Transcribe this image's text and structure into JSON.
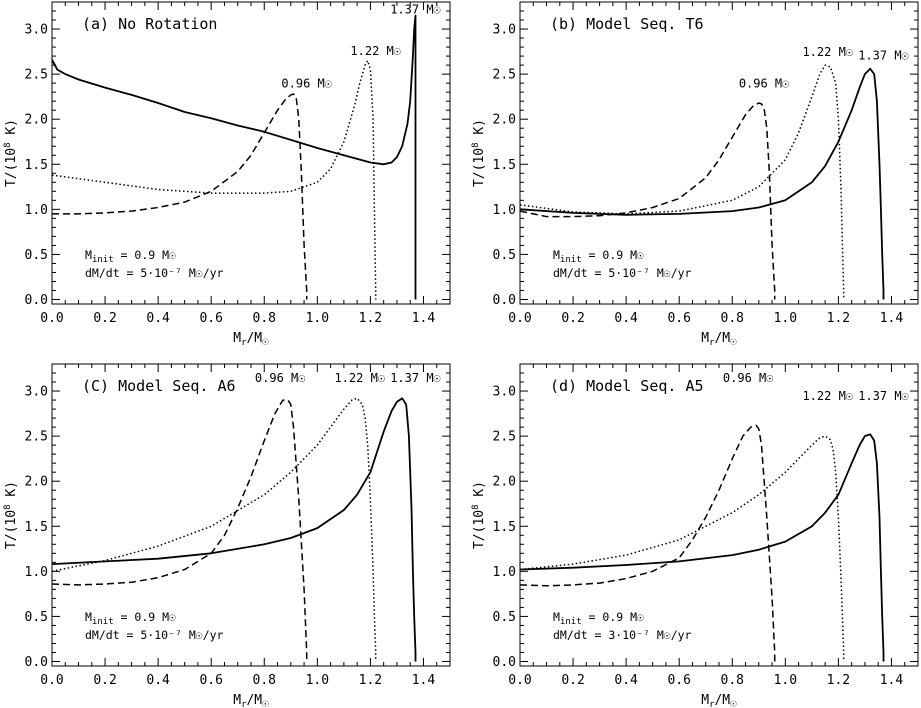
{
  "figure": {
    "xlabel_main": "M",
    "xlabel_sub": "r",
    "xlabel_rest": "/M",
    "xlabel_sym": "☉",
    "ylabel_pre": "T/(10",
    "ylabel_exp": "8",
    "ylabel_post": " K)"
  },
  "chart_data": [
    {
      "type": "line",
      "title": "(a) No Rotation",
      "annot_minit_pre": "M",
      "annot_minit_sub": "init",
      "annot_minit_post": " = 0.9 M☉",
      "annot_rate": "dM/dt = 5·10⁻⁷ M☉/yr",
      "xlim": [
        0,
        1.5
      ],
      "ylim": [
        -0.05,
        3.3
      ],
      "xticks": [
        "0.0",
        "0.2",
        "0.4",
        "0.6",
        "0.8",
        "1.0",
        "1.2",
        "1.4"
      ],
      "yticks": [
        "0.0",
        "0.5",
        "1.0",
        "1.5",
        "2.0",
        "2.5",
        "3.0"
      ],
      "series": [
        {
          "name": "0.96 M☉",
          "style": "dashed",
          "label_x": 0.96,
          "label_y": 2.35,
          "x": [
            0,
            0.1,
            0.2,
            0.3,
            0.4,
            0.5,
            0.6,
            0.7,
            0.75,
            0.8,
            0.85,
            0.88,
            0.9,
            0.91,
            0.92,
            0.93,
            0.94,
            0.95,
            0.96,
            0.96
          ],
          "y": [
            0.95,
            0.95,
            0.96,
            0.98,
            1.02,
            1.08,
            1.2,
            1.42,
            1.6,
            1.85,
            2.1,
            2.22,
            2.27,
            2.28,
            2.25,
            2.0,
            1.4,
            0.6,
            0.1,
            0
          ]
        },
        {
          "name": "1.22 M☉",
          "style": "dotted",
          "label_x": 1.22,
          "label_y": 2.71,
          "x": [
            0,
            0.2,
            0.4,
            0.6,
            0.8,
            0.9,
            1.0,
            1.05,
            1.1,
            1.14,
            1.16,
            1.18,
            1.19,
            1.2,
            1.21,
            1.215,
            1.22,
            1.22
          ],
          "y": [
            1.38,
            1.3,
            1.22,
            1.18,
            1.18,
            1.2,
            1.3,
            1.45,
            1.75,
            2.15,
            2.4,
            2.6,
            2.65,
            2.55,
            2.0,
            1.0,
            0.1,
            0
          ]
        },
        {
          "name": "1.37 M☉",
          "style": "solid",
          "label_x": 1.37,
          "label_y": 3.17,
          "x": [
            0,
            0.02,
            0.05,
            0.1,
            0.2,
            0.3,
            0.4,
            0.5,
            0.6,
            0.7,
            0.8,
            0.9,
            1.0,
            1.1,
            1.2,
            1.25,
            1.28,
            1.3,
            1.32,
            1.34,
            1.35,
            1.36,
            1.365,
            1.37,
            1.37
          ],
          "y": [
            2.66,
            2.55,
            2.5,
            2.44,
            2.35,
            2.27,
            2.18,
            2.08,
            2.01,
            1.93,
            1.86,
            1.77,
            1.68,
            1.6,
            1.52,
            1.5,
            1.52,
            1.58,
            1.7,
            1.95,
            2.2,
            2.7,
            3.0,
            3.15,
            0
          ]
        }
      ]
    },
    {
      "type": "line",
      "title": "(b) Model Seq. T6",
      "annot_minit_pre": "M",
      "annot_minit_sub": "init",
      "annot_minit_post": " = 0.9 M☉",
      "annot_rate": "dM/dt = 5·10⁻⁷ M☉/yr",
      "xlim": [
        0,
        1.5
      ],
      "ylim": [
        -0.05,
        3.3
      ],
      "xticks": [
        "0.0",
        "0.2",
        "0.4",
        "0.6",
        "0.8",
        "1.0",
        "1.2",
        "1.4"
      ],
      "yticks": [
        "0.0",
        "0.5",
        "1.0",
        "1.5",
        "2.0",
        "2.5",
        "3.0"
      ],
      "series": [
        {
          "name": "0.96 M☉",
          "style": "dashed",
          "label_x": 0.92,
          "label_y": 2.35,
          "x": [
            0,
            0.1,
            0.2,
            0.3,
            0.4,
            0.5,
            0.6,
            0.7,
            0.75,
            0.8,
            0.85,
            0.88,
            0.9,
            0.91,
            0.92,
            0.93,
            0.94,
            0.95,
            0.96,
            0.96
          ],
          "y": [
            0.98,
            0.92,
            0.92,
            0.93,
            0.96,
            1.02,
            1.12,
            1.35,
            1.55,
            1.8,
            2.05,
            2.15,
            2.18,
            2.17,
            2.12,
            1.9,
            1.4,
            0.6,
            0.1,
            0
          ]
        },
        {
          "name": "1.22 M☉",
          "style": "dotted",
          "label_x": 1.16,
          "label_y": 2.7,
          "x": [
            0,
            0.2,
            0.4,
            0.6,
            0.8,
            0.9,
            1.0,
            1.05,
            1.1,
            1.13,
            1.15,
            1.17,
            1.19,
            1.2,
            1.21,
            1.215,
            1.22,
            1.22
          ],
          "y": [
            1.05,
            0.97,
            0.95,
            0.98,
            1.1,
            1.25,
            1.55,
            1.85,
            2.25,
            2.5,
            2.6,
            2.58,
            2.4,
            2.0,
            1.2,
            0.6,
            0.1,
            0
          ]
        },
        {
          "name": "1.37 M☉",
          "style": "solid",
          "label_x": 1.37,
          "label_y": 2.66,
          "x": [
            0,
            0.2,
            0.4,
            0.6,
            0.8,
            0.9,
            1.0,
            1.1,
            1.15,
            1.2,
            1.25,
            1.28,
            1.3,
            1.32,
            1.335,
            1.345,
            1.355,
            1.36,
            1.365,
            1.37,
            1.37
          ],
          "y": [
            1.0,
            0.96,
            0.94,
            0.95,
            0.98,
            1.02,
            1.1,
            1.3,
            1.48,
            1.75,
            2.1,
            2.35,
            2.5,
            2.56,
            2.5,
            2.2,
            1.5,
            1.0,
            0.5,
            0.1,
            0
          ]
        }
      ]
    },
    {
      "type": "line",
      "title": "(C) Model Seq. A6",
      "annot_minit_pre": "M",
      "annot_minit_sub": "init",
      "annot_minit_post": " = 0.9 M☉",
      "annot_rate": "dM/dt = 5·10⁻⁷ M☉/yr",
      "xlim": [
        0,
        1.5
      ],
      "ylim": [
        -0.05,
        3.3
      ],
      "xticks": [
        "0.0",
        "0.2",
        "0.4",
        "0.6",
        "0.8",
        "1.0",
        "1.2",
        "1.4"
      ],
      "yticks": [
        "0.0",
        "0.5",
        "1.0",
        "1.5",
        "2.0",
        "2.5",
        "3.0"
      ],
      "series": [
        {
          "name": "0.96 M☉",
          "style": "dashed",
          "label_x": 0.86,
          "label_y": 3.1,
          "x": [
            0,
            0.1,
            0.2,
            0.3,
            0.4,
            0.5,
            0.6,
            0.65,
            0.7,
            0.75,
            0.8,
            0.84,
            0.87,
            0.89,
            0.9,
            0.91,
            0.93,
            0.95,
            0.96,
            0.96
          ],
          "y": [
            0.86,
            0.85,
            0.86,
            0.88,
            0.93,
            1.02,
            1.2,
            1.4,
            1.7,
            2.05,
            2.45,
            2.75,
            2.9,
            2.9,
            2.85,
            2.6,
            1.8,
            0.8,
            0.1,
            0
          ]
        },
        {
          "name": "1.22 M☉",
          "style": "dotted",
          "label_x": 1.16,
          "label_y": 3.1,
          "x": [
            0,
            0.2,
            0.4,
            0.6,
            0.8,
            0.9,
            1.0,
            1.05,
            1.1,
            1.13,
            1.15,
            1.17,
            1.18,
            1.19,
            1.2,
            1.21,
            1.215,
            1.22,
            1.22
          ],
          "y": [
            1.0,
            1.12,
            1.28,
            1.5,
            1.85,
            2.1,
            2.4,
            2.6,
            2.8,
            2.9,
            2.92,
            2.85,
            2.7,
            2.4,
            1.8,
            1.0,
            0.5,
            0.1,
            0
          ]
        },
        {
          "name": "1.37 M☉",
          "style": "solid",
          "label_x": 1.37,
          "label_y": 3.1,
          "x": [
            0,
            0.2,
            0.4,
            0.6,
            0.8,
            0.9,
            1.0,
            1.1,
            1.15,
            1.2,
            1.25,
            1.28,
            1.3,
            1.32,
            1.335,
            1.345,
            1.355,
            1.36,
            1.365,
            1.37,
            1.37
          ],
          "y": [
            1.08,
            1.11,
            1.14,
            1.2,
            1.3,
            1.37,
            1.48,
            1.68,
            1.85,
            2.1,
            2.55,
            2.78,
            2.88,
            2.92,
            2.85,
            2.5,
            1.7,
            1.0,
            0.5,
            0.1,
            0
          ]
        }
      ]
    },
    {
      "type": "line",
      "title": "(d) Model Seq. A5",
      "annot_minit_pre": "M",
      "annot_minit_sub": "init",
      "annot_minit_post": " = 0.9 M☉",
      "annot_rate": "dM/dt = 3·10⁻⁷ M☉/yr",
      "xlim": [
        0,
        1.5
      ],
      "ylim": [
        -0.05,
        3.3
      ],
      "xticks": [
        "0.0",
        "0.2",
        "0.4",
        "0.6",
        "0.8",
        "1.0",
        "1.2",
        "1.4"
      ],
      "yticks": [
        "0.0",
        "0.5",
        "1.0",
        "1.5",
        "2.0",
        "2.5",
        "3.0"
      ],
      "series": [
        {
          "name": "0.96 M☉",
          "style": "dashed",
          "label_x": 0.86,
          "label_y": 3.1,
          "x": [
            0,
            0.1,
            0.2,
            0.3,
            0.4,
            0.5,
            0.6,
            0.65,
            0.7,
            0.75,
            0.8,
            0.84,
            0.87,
            0.89,
            0.9,
            0.91,
            0.93,
            0.95,
            0.96,
            0.96
          ],
          "y": [
            0.85,
            0.84,
            0.85,
            0.87,
            0.92,
            1.0,
            1.15,
            1.35,
            1.6,
            1.9,
            2.25,
            2.5,
            2.6,
            2.62,
            2.58,
            2.4,
            1.6,
            0.7,
            0.1,
            0
          ]
        },
        {
          "name": "1.22 M☉",
          "style": "dotted",
          "label_x": 1.16,
          "label_y": 2.9,
          "x": [
            0,
            0.2,
            0.4,
            0.6,
            0.8,
            0.9,
            1.0,
            1.05,
            1.1,
            1.13,
            1.15,
            1.17,
            1.18,
            1.19,
            1.2,
            1.21,
            1.215,
            1.22,
            1.22
          ],
          "y": [
            1.02,
            1.08,
            1.18,
            1.35,
            1.65,
            1.85,
            2.1,
            2.25,
            2.4,
            2.48,
            2.5,
            2.46,
            2.35,
            2.1,
            1.6,
            0.9,
            0.5,
            0.1,
            0
          ]
        },
        {
          "name": "1.37 M☉",
          "style": "solid",
          "label_x": 1.37,
          "label_y": 2.9,
          "x": [
            0,
            0.2,
            0.4,
            0.6,
            0.8,
            0.9,
            1.0,
            1.1,
            1.15,
            1.2,
            1.25,
            1.28,
            1.3,
            1.32,
            1.335,
            1.345,
            1.355,
            1.36,
            1.365,
            1.37,
            1.37
          ],
          "y": [
            1.02,
            1.04,
            1.07,
            1.11,
            1.18,
            1.24,
            1.33,
            1.5,
            1.65,
            1.85,
            2.2,
            2.4,
            2.5,
            2.52,
            2.45,
            2.2,
            1.6,
            1.0,
            0.5,
            0.1,
            0
          ]
        }
      ]
    }
  ]
}
